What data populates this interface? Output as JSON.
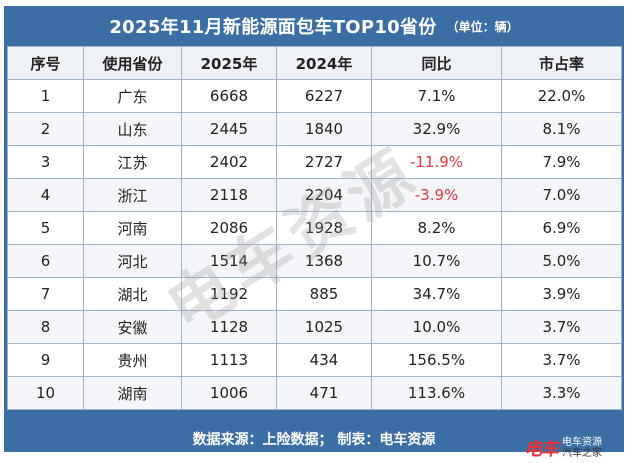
{
  "title": "2025年11月新能源面包车TOP10省份",
  "unit": "（单位：辆）",
  "headers": [
    "序号",
    "使用省份",
    "2025年",
    "2024年",
    "同比",
    "市占率"
  ],
  "rows": [
    {
      "idx": "1",
      "province": "广东",
      "y2025": "6668",
      "y2024": "6227",
      "yoy": "7.1%",
      "share": "22.0%",
      "negative": false
    },
    {
      "idx": "2",
      "province": "山东",
      "y2025": "2445",
      "y2024": "1840",
      "yoy": "32.9%",
      "share": "8.1%",
      "negative": false
    },
    {
      "idx": "3",
      "province": "江苏",
      "y2025": "2402",
      "y2024": "2727",
      "yoy": "-11.9%",
      "share": "7.9%",
      "negative": true
    },
    {
      "idx": "4",
      "province": "浙江",
      "y2025": "2118",
      "y2024": "2204",
      "yoy": "-3.9%",
      "share": "7.0%",
      "negative": true
    },
    {
      "idx": "5",
      "province": "河南",
      "y2025": "2086",
      "y2024": "1928",
      "yoy": "8.2%",
      "share": "6.9%",
      "negative": false
    },
    {
      "idx": "6",
      "province": "河北",
      "y2025": "1514",
      "y2024": "1368",
      "yoy": "10.7%",
      "share": "5.0%",
      "negative": false
    },
    {
      "idx": "7",
      "province": "湖北",
      "y2025": "1192",
      "y2024": "885",
      "yoy": "34.7%",
      "share": "3.9%",
      "negative": false
    },
    {
      "idx": "8",
      "province": "安徽",
      "y2025": "1128",
      "y2024": "1025",
      "yoy": "10.0%",
      "share": "3.7%",
      "negative": false
    },
    {
      "idx": "9",
      "province": "贵州",
      "y2025": "1113",
      "y2024": "434",
      "yoy": "156.5%",
      "share": "3.7%",
      "negative": false
    },
    {
      "idx": "10",
      "province": "湖南",
      "y2025": "1006",
      "y2024": "471",
      "yoy": "113.6%",
      "share": "3.3%",
      "negative": false
    }
  ],
  "footer": "数据来源：上险数据；  制表：电车资源",
  "watermark": "电车资源",
  "corner_logo": {
    "mark": "电车",
    "line1": "电车资源",
    "line2": "汽车之家"
  },
  "colors": {
    "frame": "#3a6ea5",
    "negative": "#e8353a"
  }
}
